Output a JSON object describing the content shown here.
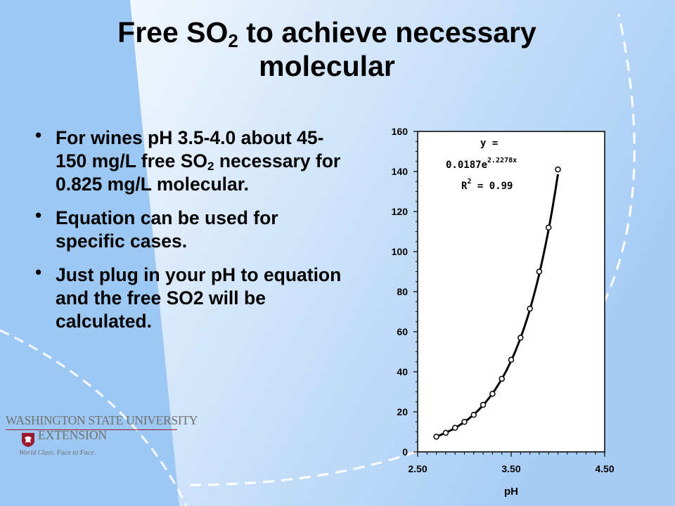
{
  "slide": {
    "title_pre": "Free SO",
    "title_sub": "2",
    "title_post": " to achieve necessary",
    "title_line2": "molecular",
    "bullet_symbol": "•",
    "bullets": [
      {
        "pre": "For wines pH 3.5-4.0 about 45-150 mg/L free SO",
        "sub": "2",
        "post": " necessary for 0.825 mg/L molecular."
      },
      {
        "text": "Equation can be used for specific cases."
      },
      {
        "text": "Just plug in your pH to equation and the free SO2 will be calculated."
      }
    ],
    "logo": {
      "line1": "WASHINGTON STATE UNIVERSITY",
      "line2": "EXTENSION",
      "tagline": "World Class. Face to Face."
    },
    "colors": {
      "background_blue": "#9ec8f4",
      "background_white": "#ffffff",
      "logo_accent": "#9a1b2f"
    }
  },
  "chart_data": {
    "type": "scatter",
    "xlabel": "pH",
    "ylabel": "",
    "xlim": [
      2.5,
      4.5
    ],
    "ylim": [
      0,
      160
    ],
    "x_ticks": [
      "2.50",
      "3.50",
      "4.50"
    ],
    "y_ticks": [
      "0",
      "20",
      "40",
      "60",
      "80",
      "100",
      "120",
      "140",
      "160"
    ],
    "grid": false,
    "legend": "none",
    "series": [
      {
        "x": [
          2.7,
          2.8,
          2.9,
          3.0,
          3.1,
          3.2,
          3.3,
          3.4,
          3.5,
          3.6,
          3.7,
          3.8,
          3.9,
          4.0
        ],
        "values": [
          7.6,
          9.5,
          12,
          15,
          18.5,
          23.5,
          29,
          36.5,
          46,
          57,
          71.5,
          90,
          112,
          141
        ]
      }
    ],
    "trendline": {
      "type": "exponential",
      "a": 0.0187,
      "b": 2.2278,
      "equation_line1": "y =",
      "equation_base": "0.0187e",
      "equation_exponent": "2.2278x",
      "r2_label": "R",
      "r2_exponent": "2",
      "r2_value": " = 0.99"
    }
  }
}
